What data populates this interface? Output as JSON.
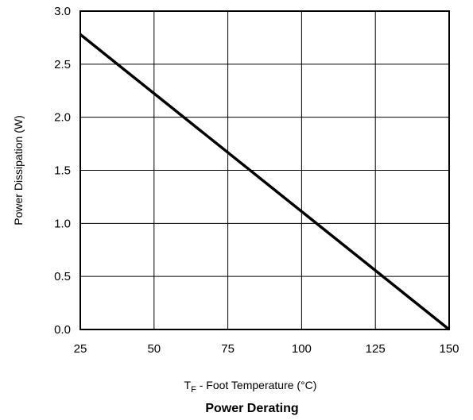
{
  "chart_data": {
    "type": "line",
    "title": "Power Derating",
    "xlabel": {
      "symbol": "T",
      "subscript": "F",
      "rest": " - Foot Temperature (°C)"
    },
    "ylabel": "Power Dissipation (W)",
    "xlim": [
      25,
      150
    ],
    "ylim": [
      0.0,
      3.0
    ],
    "x_ticks": [
      "25",
      "50",
      "75",
      "100",
      "125",
      "150"
    ],
    "y_ticks": [
      "0.0",
      "0.5",
      "1.0",
      "1.5",
      "2.0",
      "2.5",
      "3.0"
    ],
    "grid": true,
    "legend": "none",
    "series": [
      {
        "x": [
          25,
          150
        ],
        "y": [
          2.78,
          0.0
        ],
        "color": "#000000"
      }
    ]
  }
}
